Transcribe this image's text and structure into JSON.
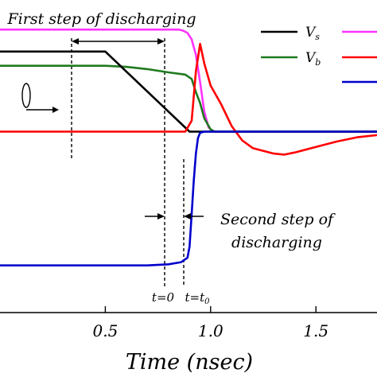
{
  "chart_data": {
    "type": "line",
    "title": "",
    "xlabel": "Time (nsec)",
    "ylabel": "",
    "xlim": [
      0.0,
      1.79
    ],
    "ylim": [
      -1.65,
      1.2
    ],
    "xticks": [
      {
        "value": 0.5,
        "label": "0.5"
      },
      {
        "value": 1.0,
        "label": "1.0"
      },
      {
        "value": 1.5,
        "label": "1.5"
      }
    ],
    "legend_placement": "top-right",
    "legend": [
      {
        "label": "Vs",
        "main": "V",
        "sub": "s",
        "color": "#000000"
      },
      {
        "label": "Vb",
        "main": "V",
        "sub": "b",
        "color": "#1f7a1f"
      }
    ],
    "series": [
      {
        "color": "#ff33ff",
        "x": [
          0.0,
          0.85,
          0.87,
          0.89,
          0.91,
          0.93,
          0.95,
          0.97,
          0.99,
          1.01,
          1.03,
          1.8
        ],
        "y": [
          0.93,
          0.93,
          0.92,
          0.9,
          0.84,
          0.7,
          0.45,
          0.18,
          0.04,
          0.0,
          0.0,
          0.0
        ]
      },
      {
        "color": "#1f7a1f",
        "x": [
          0.0,
          0.5,
          0.6,
          0.7,
          0.8,
          0.88,
          0.91,
          0.93,
          0.95,
          0.97,
          1.0,
          1.02,
          1.8
        ],
        "y": [
          0.6,
          0.6,
          0.59,
          0.57,
          0.54,
          0.52,
          0.48,
          0.36,
          0.26,
          0.12,
          0.02,
          0.0,
          0.0
        ]
      },
      {
        "color": "#000000",
        "x": [
          0.0,
          0.5,
          0.9,
          0.95,
          1.8
        ],
        "y": [
          0.73,
          0.73,
          0.0,
          0.0,
          0.0
        ]
      },
      {
        "color": "#ff0000",
        "x": [
          0.0,
          0.88,
          0.91,
          0.93,
          0.95,
          0.97,
          1.0,
          1.05,
          1.1,
          1.15,
          1.2,
          1.3,
          1.35,
          1.4,
          1.5,
          1.6,
          1.7,
          1.8
        ],
        "y": [
          0.0,
          0.0,
          0.1,
          0.55,
          0.8,
          0.62,
          0.42,
          0.25,
          0.05,
          -0.08,
          -0.15,
          -0.2,
          -0.21,
          -0.19,
          -0.14,
          -0.09,
          -0.05,
          -0.03
        ]
      },
      {
        "color": "#0000cc",
        "x": [
          0.0,
          0.7,
          0.8,
          0.86,
          0.89,
          0.9,
          0.91,
          0.92,
          0.93,
          0.94,
          0.95,
          0.97,
          1.0,
          1.8
        ],
        "y": [
          -1.22,
          -1.22,
          -1.21,
          -1.19,
          -1.15,
          -1.05,
          -0.75,
          -0.45,
          -0.2,
          -0.06,
          -0.01,
          0.0,
          0.0,
          0.0
        ]
      }
    ],
    "annotations": {
      "first_step": {
        "text": "First step of discharging",
        "x_start": 0.5,
        "x_end": 0.9
      },
      "second_step": {
        "line1": "Second step of",
        "line2": "discharging",
        "x_start": 0.9,
        "x_end": 0.97
      },
      "t_zero": {
        "text": "t=0",
        "x": 0.9
      },
      "t_zero_sub": {
        "main": "t=t",
        "sub": "0",
        "x": 0.97
      }
    }
  }
}
